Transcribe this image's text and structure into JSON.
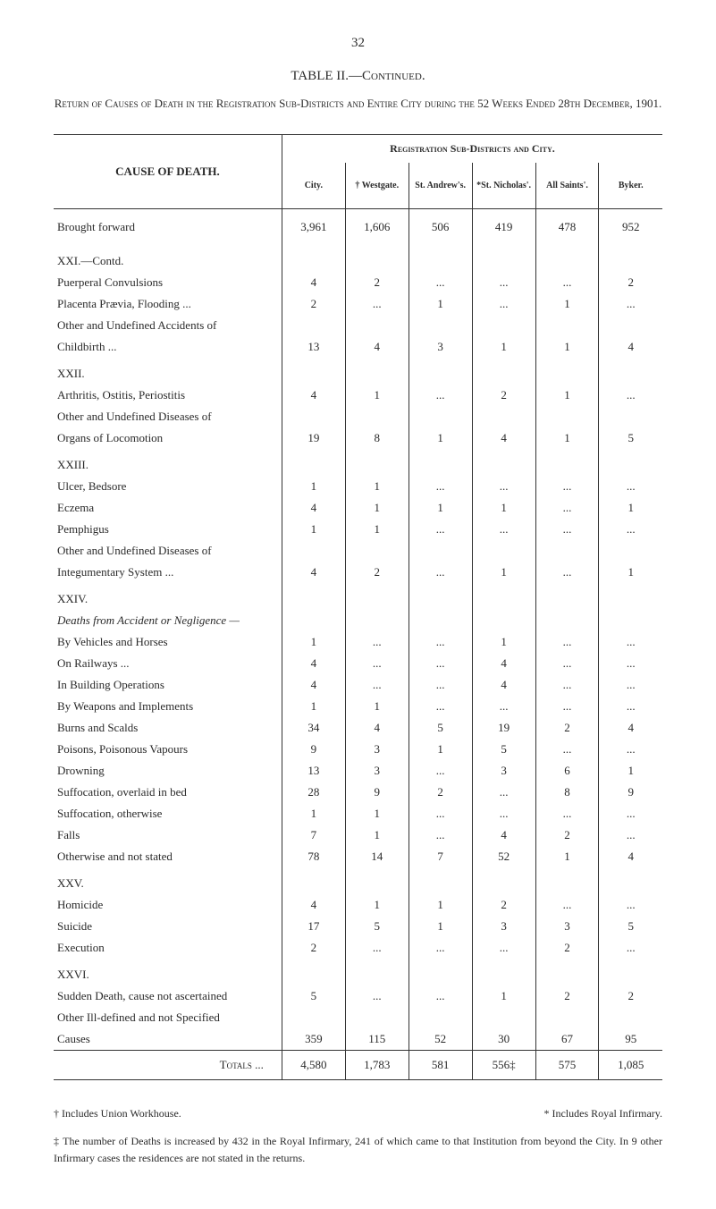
{
  "page_number": "32",
  "table_title": "TABLE II.—Continued.",
  "subtitle": "Return of Causes of Death in the Registration Sub-Districts and Entire City during the 52 Weeks Ended 28th December, 1901.",
  "table": {
    "cause_header": "CAUSE OF DEATH.",
    "super_header": "Registration Sub-Districts and City.",
    "columns": [
      "City.",
      "† Westgate.",
      "St. Andrew's.",
      "*St. Nicholas'.",
      "All Saints'.",
      "Byker."
    ],
    "brought_forward": {
      "label": "Brought forward",
      "values": [
        "3,961",
        "1,606",
        "506",
        "419",
        "478",
        "952"
      ]
    },
    "sections": [
      {
        "head": "XXI.—Contd.",
        "rows": [
          {
            "label": "Puerperal Convulsions",
            "values": [
              "4",
              "2",
              "...",
              "...",
              "...",
              "2"
            ]
          },
          {
            "label": "Placenta Prævia, Flooding ...",
            "values": [
              "2",
              "...",
              "1",
              "...",
              "1",
              "..."
            ]
          },
          {
            "label": "Other and Undefined Accidents of Childbirth ...",
            "values": [
              "13",
              "4",
              "3",
              "1",
              "1",
              "4"
            ],
            "indent": true
          }
        ]
      },
      {
        "head": "XXII.",
        "rows": [
          {
            "label": "Arthritis, Ostitis, Periostitis",
            "values": [
              "4",
              "1",
              "...",
              "2",
              "1",
              "..."
            ]
          },
          {
            "label": "Other and Undefined Diseases of Organs of Locomotion",
            "values": [
              "19",
              "8",
              "1",
              "4",
              "1",
              "5"
            ],
            "indent": true
          }
        ]
      },
      {
        "head": "XXIII.",
        "rows": [
          {
            "label": "Ulcer, Bedsore",
            "values": [
              "1",
              "1",
              "...",
              "...",
              "...",
              "..."
            ]
          },
          {
            "label": "Eczema",
            "values": [
              "4",
              "1",
              "1",
              "1",
              "...",
              "1"
            ]
          },
          {
            "label": "Pemphigus",
            "values": [
              "1",
              "1",
              "...",
              "...",
              "...",
              "..."
            ]
          },
          {
            "label": "Other and Undefined Diseases of Integumentary System ...",
            "values": [
              "4",
              "2",
              "...",
              "1",
              "...",
              "1"
            ],
            "indent": true
          }
        ]
      },
      {
        "head": "XXIV.",
        "subhead": "Deaths from Accident or Negligence —",
        "rows": [
          {
            "label": "By Vehicles and Horses",
            "values": [
              "1",
              "...",
              "...",
              "1",
              "...",
              "..."
            ]
          },
          {
            "label": "On Railways ...",
            "values": [
              "4",
              "...",
              "...",
              "4",
              "...",
              "..."
            ]
          },
          {
            "label": "In Building Operations",
            "values": [
              "4",
              "...",
              "...",
              "4",
              "...",
              "..."
            ]
          },
          {
            "label": "By Weapons and Implements",
            "values": [
              "1",
              "1",
              "...",
              "...",
              "...",
              "..."
            ]
          },
          {
            "label": "Burns and Scalds",
            "values": [
              "34",
              "4",
              "5",
              "19",
              "2",
              "4"
            ]
          },
          {
            "label": "Poisons, Poisonous Vapours",
            "values": [
              "9",
              "3",
              "1",
              "5",
              "...",
              "..."
            ]
          },
          {
            "label": "Drowning",
            "values": [
              "13",
              "3",
              "...",
              "3",
              "6",
              "1"
            ]
          },
          {
            "label": "Suffocation, overlaid in bed",
            "values": [
              "28",
              "9",
              "2",
              "...",
              "8",
              "9"
            ]
          },
          {
            "label": "Suffocation, otherwise",
            "values": [
              "1",
              "1",
              "...",
              "...",
              "...",
              "..."
            ]
          },
          {
            "label": "Falls",
            "values": [
              "7",
              "1",
              "...",
              "4",
              "2",
              "..."
            ]
          },
          {
            "label": "Otherwise and not stated",
            "values": [
              "78",
              "14",
              "7",
              "52",
              "1",
              "4"
            ]
          }
        ]
      },
      {
        "head": "XXV.",
        "rows": [
          {
            "label": "Homicide",
            "values": [
              "4",
              "1",
              "1",
              "2",
              "...",
              "..."
            ]
          },
          {
            "label": "Suicide",
            "values": [
              "17",
              "5",
              "1",
              "3",
              "3",
              "5"
            ]
          },
          {
            "label": "Execution",
            "values": [
              "2",
              "...",
              "...",
              "...",
              "2",
              "..."
            ]
          }
        ]
      },
      {
        "head": "XXVI.",
        "rows": [
          {
            "label": "Sudden Death, cause not ascertained",
            "values": [
              "5",
              "...",
              "...",
              "1",
              "2",
              "2"
            ]
          },
          {
            "label": "Other Ill-defined and not Specified Causes",
            "values": [
              "359",
              "115",
              "52",
              "30",
              "67",
              "95"
            ],
            "indent": true
          }
        ]
      }
    ],
    "totals": {
      "label": "Totals ...",
      "values": [
        "4,580",
        "1,783",
        "581",
        "556‡",
        "575",
        "1,085"
      ]
    }
  },
  "footnotes": {
    "left": "† Includes Union Workhouse.",
    "right": "* Includes Royal Infirmary.",
    "para": "‡ The number of Deaths is increased by 432 in the Royal Infirmary, 241 of which came to that Institution from beyond the City.   In 9 other Infirmary cases the residences are not stated in the returns."
  }
}
